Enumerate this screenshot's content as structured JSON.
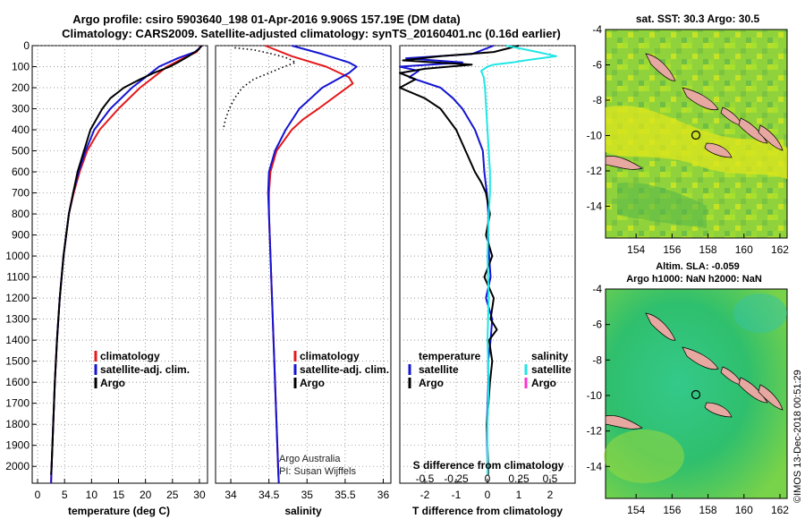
{
  "header": {
    "title_line1": "Argo profile: csiro 5903640_198 01-Apr-2016 9.906S 157.19E (DM data)",
    "title_line2": "Climatology: CARS2009. Satellite-adjusted climatology: synTS_20160401.nc (0.16d earlier)"
  },
  "colors": {
    "climatology": "#e41a1c",
    "satellite": "#1414d2",
    "argo": "#000000",
    "salinity_satellite": "#22e6e6",
    "salinity_argo": "#ff33cc",
    "land": "#e6a8a0"
  },
  "credit": "©IMOS 13-Dec-2018 00:51:29",
  "chart_data": [
    {
      "type": "line",
      "id": "temperature",
      "xlabel": "temperature (deg C)",
      "ylabel": "",
      "xlim": [
        -1,
        31.5
      ],
      "ylim": [
        2080,
        0
      ],
      "xticks": [
        0,
        5,
        10,
        15,
        20,
        25,
        30
      ],
      "yticks": [
        0,
        100,
        200,
        300,
        400,
        500,
        600,
        700,
        800,
        900,
        1000,
        1100,
        1200,
        1300,
        1400,
        1500,
        1600,
        1700,
        1800,
        1900,
        2000
      ],
      "grid": true,
      "legend": [
        "climatology",
        "satellite-adj. clim.",
        "Argo"
      ],
      "series": [
        {
          "name": "climatology",
          "color": "#e41a1c",
          "depth": [
            0,
            30,
            60,
            100,
            150,
            200,
            300,
            400,
            500,
            600,
            700,
            800,
            1000,
            1200,
            1400,
            1600,
            1800,
            2000,
            2080
          ],
          "values": [
            30.3,
            29.5,
            27,
            24,
            21.5,
            19,
            15,
            11.5,
            9.2,
            7.8,
            6.7,
            5.8,
            4.8,
            4.1,
            3.6,
            3.2,
            2.9,
            2.6,
            2.5
          ]
        },
        {
          "name": "satellite-adj. clim.",
          "color": "#1414d2",
          "depth": [
            0,
            30,
            60,
            100,
            150,
            200,
            300,
            400,
            500,
            600,
            700,
            800,
            1000,
            1200,
            1400,
            1600,
            1800,
            2000,
            2080
          ],
          "values": [
            30.5,
            29.2,
            26,
            22.5,
            20,
            17.5,
            13.5,
            10.5,
            8.9,
            7.6,
            6.6,
            5.8,
            4.8,
            4.1,
            3.6,
            3.2,
            2.9,
            2.6,
            2.5
          ]
        },
        {
          "name": "Argo",
          "color": "#000000",
          "depth": [
            0,
            20,
            50,
            80,
            100,
            130,
            160,
            200,
            250,
            300,
            400,
            500,
            600,
            700,
            800,
            1000,
            1200,
            1400,
            1600,
            1800,
            2000,
            2040
          ],
          "values": [
            30.4,
            29.8,
            28,
            26,
            24.5,
            21.5,
            19,
            16,
            13.5,
            12,
            9.8,
            8.6,
            7.4,
            6.6,
            5.8,
            4.8,
            4.1,
            3.6,
            3.2,
            2.9,
            2.6,
            2.5
          ]
        }
      ]
    },
    {
      "type": "line",
      "id": "salinity",
      "xlabel": "salinity",
      "ylabel": "",
      "xlim": [
        33.8,
        36.1
      ],
      "ylim": [
        2080,
        0
      ],
      "xticks": [
        34,
        34.5,
        35,
        35.5,
        36
      ],
      "xticklabels": [
        "34",
        "34.5",
        "35",
        "35.5",
        "36"
      ],
      "grid": true,
      "legend": [
        "climatology",
        "satellite-adj. clim.",
        "Argo"
      ],
      "annotation": [
        "Argo Australia",
        "PI: Susan Wijffels"
      ],
      "series": [
        {
          "name": "climatology",
          "color": "#e41a1c",
          "depth": [
            0,
            50,
            100,
            150,
            180,
            220,
            260,
            300,
            350,
            400,
            500,
            600,
            700,
            800,
            1000,
            1200,
            1400,
            1600,
            1800,
            2000,
            2080
          ],
          "values": [
            34.45,
            34.8,
            35.25,
            35.55,
            35.6,
            35.45,
            35.3,
            35.15,
            34.95,
            34.8,
            34.6,
            34.52,
            34.5,
            34.5,
            34.52,
            34.54,
            34.56,
            34.58,
            34.6,
            34.62,
            34.63
          ]
        },
        {
          "name": "satellite-adj. clim.",
          "color": "#1414d2",
          "depth": [
            0,
            40,
            80,
            100,
            130,
            160,
            200,
            250,
            300,
            400,
            500,
            600,
            700,
            800,
            1000,
            1200,
            1400,
            1600,
            1800,
            2000,
            2080
          ],
          "values": [
            34.8,
            35.2,
            35.55,
            35.65,
            35.55,
            35.4,
            35.2,
            35.05,
            34.9,
            34.72,
            34.58,
            34.5,
            34.49,
            34.5,
            34.52,
            34.54,
            34.56,
            34.58,
            34.6,
            34.62,
            34.63
          ]
        },
        {
          "name": "Argo",
          "color": "#000000",
          "style": "dotted",
          "depth": [
            10,
            20,
            40,
            60,
            80,
            100,
            130,
            160,
            200,
            250,
            300,
            350,
            400
          ],
          "values": [
            34.05,
            34.3,
            34.55,
            34.75,
            34.85,
            34.7,
            34.5,
            34.3,
            34.15,
            34.05,
            33.98,
            33.93,
            33.9
          ]
        }
      ]
    },
    {
      "type": "line",
      "id": "difference",
      "xlabel": "T difference from climatology",
      "ylabel": "",
      "xlim": [
        -2.8,
        2.8
      ],
      "ylim": [
        2080,
        0
      ],
      "xticks": [
        -2,
        -1,
        0,
        1,
        2
      ],
      "grid": true,
      "secondary_axis_label": "S difference from climatology",
      "secondary_ticks": [
        -0.5,
        -0.25,
        0,
        0.25,
        0.5
      ],
      "secondary_ticklabels": [
        "-0.5",
        "-0.25",
        "0",
        "0.25",
        "0.5"
      ],
      "legend_temperature": {
        "header": "temperature",
        "items": [
          "satellite",
          "Argo"
        ]
      },
      "legend_salinity": {
        "header": "salinity",
        "items": [
          "satellite",
          "Argo"
        ]
      },
      "series": [
        {
          "name": "temperature satellite",
          "color": "#1414d2",
          "depth": [
            0,
            40,
            60,
            80,
            100,
            120,
            150,
            200,
            250,
            300,
            400,
            500,
            600,
            700,
            800,
            900,
            1000,
            1100,
            1200,
            1300,
            1400,
            1500,
            1600,
            1800,
            2000,
            2040
          ],
          "values": [
            0.2,
            -0.5,
            -2.6,
            -0.8,
            -2.8,
            -2.2,
            -2.5,
            -1.5,
            -1.1,
            -0.8,
            -0.4,
            -0.15,
            -0.1,
            -0.02,
            0.03,
            0.02,
            0.05,
            0.1,
            -0.05,
            0.15,
            0.1,
            0.02,
            0.03,
            -0.02,
            0.0,
            0.0
          ]
        },
        {
          "name": "temperature Argo",
          "color": "#000000",
          "depth": [
            0,
            30,
            50,
            70,
            90,
            110,
            130,
            160,
            200,
            250,
            300,
            400,
            500,
            600,
            650,
            700,
            800,
            900,
            1000,
            1100,
            1200,
            1300,
            1350,
            1400,
            1500,
            1600,
            1800,
            2000,
            2040
          ],
          "values": [
            1.0,
            0.2,
            -1.5,
            -2.7,
            -0.5,
            -2.0,
            -2.8,
            -2.3,
            -2.8,
            -2.0,
            -1.5,
            -1.0,
            -0.7,
            -0.4,
            -0.2,
            -0.05,
            0.08,
            -0.05,
            0.15,
            -0.1,
            0.2,
            0.1,
            0.3,
            0.05,
            0.15,
            0.08,
            -0.02,
            0.02,
            0.02
          ]
        },
        {
          "name": "salinity satellite",
          "color": "#22e6e6",
          "axis": "secondary",
          "depth": [
            0,
            30,
            50,
            70,
            80,
            90,
            100,
            120,
            150,
            200,
            300,
            400,
            500,
            600,
            700,
            800,
            1000,
            1200,
            1400,
            1600,
            1800,
            2000,
            2040
          ],
          "values": [
            0.15,
            0.4,
            0.55,
            0.3,
            0.2,
            0.05,
            0.0,
            -0.05,
            -0.03,
            -0.02,
            -0.01,
            0.0,
            0.01,
            0.02,
            0.02,
            0.01,
            0.0,
            0.01,
            0.0,
            0.01,
            0.0,
            0.0,
            0.0
          ]
        }
      ]
    }
  ],
  "maps": [
    {
      "id": "sst-map",
      "title": "sat. SST: 30.3 Argo: 30.5",
      "subtitle": "",
      "lon_ticks": [
        154,
        156,
        158,
        160,
        162
      ],
      "lat_ticks": [
        -4,
        -6,
        -8,
        -10,
        -12,
        -14
      ],
      "float_marker": {
        "lon": 157.19,
        "lat": -9.906
      }
    },
    {
      "id": "sla-map",
      "title": "Altim. SLA: -0.059",
      "subtitle": "Argo h1000: NaN h2000: NaN",
      "lon_ticks": [
        154,
        156,
        158,
        160,
        162
      ],
      "lat_ticks": [
        -4,
        -6,
        -8,
        -10,
        -12,
        -14
      ],
      "float_marker": {
        "lon": 157.19,
        "lat": -9.906
      }
    }
  ]
}
